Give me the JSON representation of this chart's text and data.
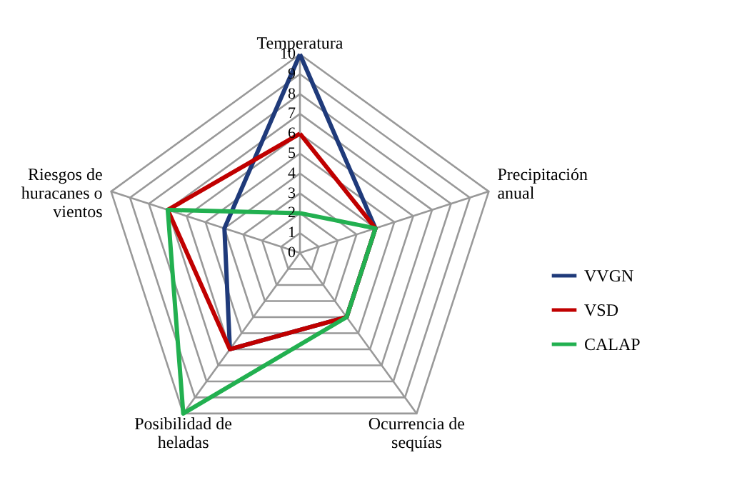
{
  "chart_data": {
    "type": "radar",
    "categories": [
      "Temperatura",
      "Precipitación anual",
      "Ocurrencia de sequías",
      "Posibilidad de heladas",
      "Riesgos de huracanes o vientos"
    ],
    "series": [
      {
        "name": "VVGN",
        "color": "#1f3a7a",
        "values": [
          10,
          4,
          4,
          6,
          4
        ]
      },
      {
        "name": "VSD",
        "color": "#c00000",
        "values": [
          6,
          4,
          4,
          6,
          7
        ]
      },
      {
        "name": "CALAP",
        "color": "#22b050",
        "values": [
          2,
          4,
          4,
          10,
          7
        ]
      }
    ],
    "ylim": [
      0,
      10
    ],
    "yticks": [
      0,
      1,
      2,
      3,
      4,
      5,
      6,
      7,
      8,
      9,
      10
    ],
    "grid": true,
    "legend": "right"
  }
}
